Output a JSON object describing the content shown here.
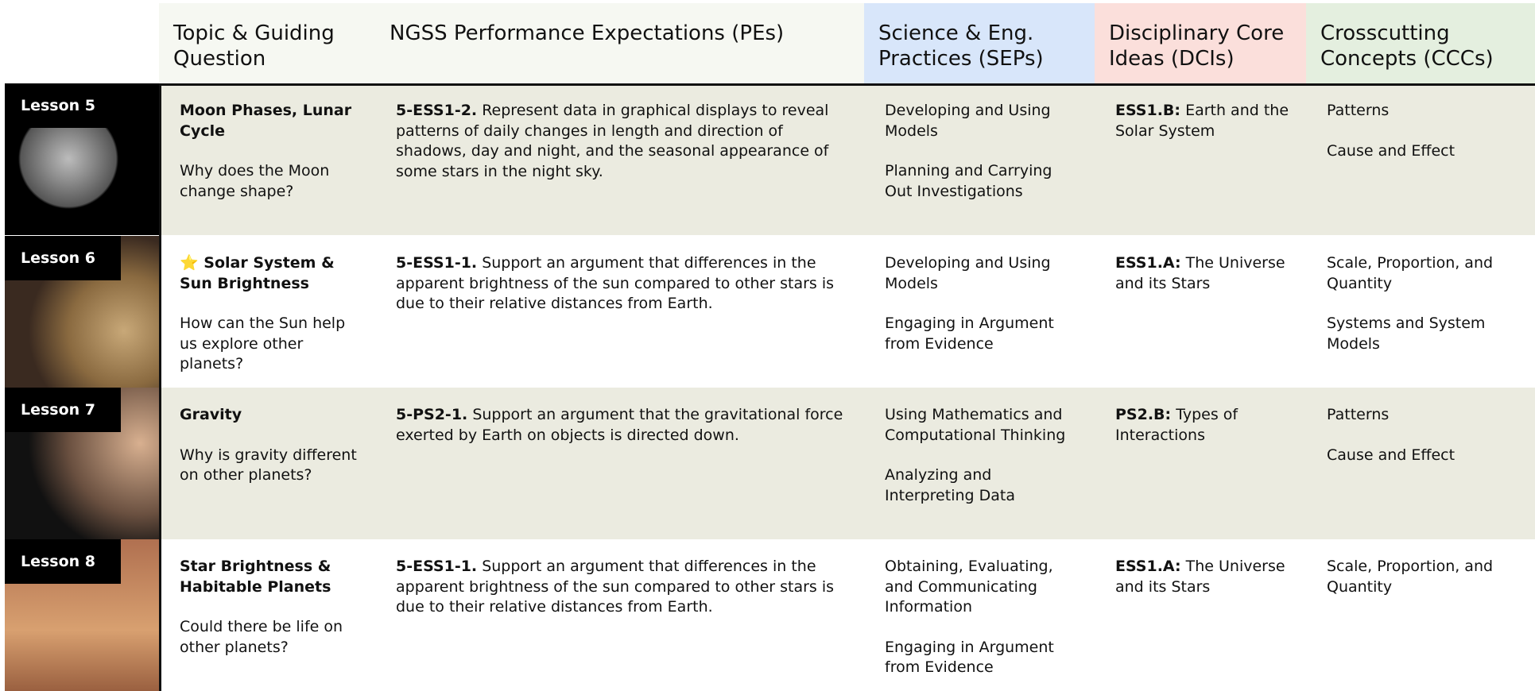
{
  "header": {
    "columns": [
      "Topic & Guiding Question",
      "NGSS Performance Expectations (PEs)",
      "Science & Eng. Practices (SEPs)",
      "Disciplinary Core Ideas (DCIs)",
      "Crosscutting Concepts (CCCs)"
    ]
  },
  "rows": [
    {
      "lesson": "Lesson 5",
      "topic": {
        "title": "Moon Phases, Lunar Cycle",
        "question": "Why does the Moon change shape?"
      },
      "pe": {
        "code": "5-ESS1-2.",
        "text": "Represent data in graphical displays to reveal patterns of daily changes in length and direction of shadows, day and night, and the seasonal appearance of some stars in the night sky."
      },
      "seps": [
        "Developing and Using Models",
        "Planning and Carrying Out Investigations"
      ],
      "dci": {
        "code": "ESS1.B:",
        "text": "Earth and the Solar System"
      },
      "cccs": [
        "Patterns",
        "Cause and Effect"
      ]
    },
    {
      "lesson": "Lesson 6",
      "topic": {
        "title": "⭐ Solar System & Sun Brightness",
        "question": "How can the Sun help us explore other planets?"
      },
      "pe": {
        "code": "5-ESS1-1.",
        "text": "Support an argument that differences in the apparent brightness of the sun compared to other stars is due to their relative distances from Earth."
      },
      "seps": [
        "Developing and Using Models",
        "Engaging in Argument from Evidence"
      ],
      "dci": {
        "code": "ESS1.A:",
        "text": "The Universe and its Stars"
      },
      "cccs": [
        "Scale, Proportion, and Quantity",
        "Systems and System Models"
      ]
    },
    {
      "lesson": "Lesson 7",
      "topic": {
        "title": "Gravity",
        "question": "Why is gravity different on other planets?"
      },
      "pe": {
        "code": "5-PS2-1.",
        "text": "Support an argument that the gravitational force exerted by Earth on objects is directed down."
      },
      "seps": [
        "Using Mathematics and Computational Thinking",
        "Analyzing and Interpreting Data"
      ],
      "dci": {
        "code": "PS2.B:",
        "text": "Types of Interactions"
      },
      "cccs": [
        "Patterns",
        "Cause and Effect"
      ]
    },
    {
      "lesson": "Lesson 8",
      "topic": {
        "title": "Star Brightness & Habitable Planets",
        "question": "Could there be life on other planets?"
      },
      "pe": {
        "code": "5-ESS1-1.",
        "text": "Support an argument that differences in the apparent brightness of the sun compared to other stars is due to their relative distances from Earth."
      },
      "seps": [
        "Obtaining, Evaluating, and Communicating Information",
        "Engaging in Argument from Evidence"
      ],
      "dci": {
        "code": "ESS1.A:",
        "text": "The Universe and its Stars"
      },
      "cccs": [
        "Scale, Proportion, and Quantity"
      ]
    }
  ]
}
